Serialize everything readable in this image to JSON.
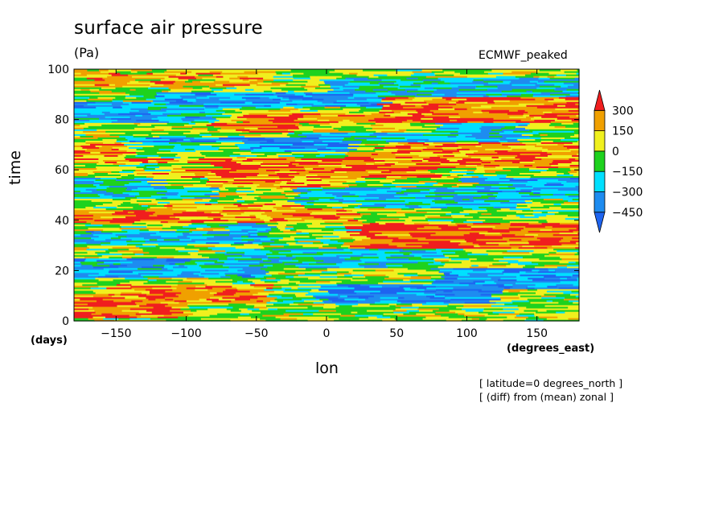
{
  "chart_data": {
    "type": "heatmap",
    "title": "surface air pressure",
    "units": "(Pa)",
    "model": "ECMWF_peaked",
    "xlabel": "lon",
    "ylabel": "time",
    "x_units": "(degrees_east)",
    "y_units": "(days)",
    "xlim": [
      -180,
      180
    ],
    "ylim": [
      0,
      100
    ],
    "x_ticks": [
      -150,
      -100,
      -50,
      0,
      50,
      100,
      150
    ],
    "y_ticks": [
      0,
      20,
      40,
      60,
      80,
      100
    ],
    "x_tick_labels": [
      "−150",
      "−100",
      "−50",
      "0",
      "50",
      "100",
      "150"
    ],
    "y_tick_labels": [
      "0",
      "20",
      "40",
      "60",
      "80",
      "100"
    ],
    "colorbar": {
      "levels": [
        -450,
        -300,
        -150,
        0,
        150,
        300
      ],
      "level_labels": [
        "−450",
        "−300",
        "−150",
        "0",
        "150",
        "300"
      ],
      "colors": [
        "#1e64f0",
        "#1e8cf0",
        "#00e0ff",
        "#1ed21e",
        "#f0f01e",
        "#f0a000",
        "#f01e1e"
      ],
      "extend": "both"
    },
    "bands": [
      {
        "lon": [
          -180,
          -120
        ],
        "time": [
          2,
          10
        ],
        "value": 300
      },
      {
        "lon": [
          -130,
          -20
        ],
        "time": [
          8,
          14
        ],
        "value": 250
      },
      {
        "lon": [
          -20,
          100
        ],
        "time": [
          8,
          14
        ],
        "value": -400
      },
      {
        "lon": [
          100,
          180
        ],
        "time": [
          14,
          20
        ],
        "value": -350
      },
      {
        "lon": [
          -180,
          -60
        ],
        "time": [
          18,
          24
        ],
        "value": -300
      },
      {
        "lon": [
          -60,
          60
        ],
        "time": [
          22,
          28
        ],
        "value": -250
      },
      {
        "lon": [
          40,
          180
        ],
        "time": [
          30,
          38
        ],
        "value": 300
      },
      {
        "lon": [
          -180,
          -60
        ],
        "time": [
          32,
          38
        ],
        "value": -300
      },
      {
        "lon": [
          -180,
          -90
        ],
        "time": [
          37,
          43
        ],
        "value": 300
      },
      {
        "lon": [
          -100,
          0
        ],
        "time": [
          40,
          46
        ],
        "value": 200
      },
      {
        "lon": [
          0,
          120
        ],
        "time": [
          46,
          52
        ],
        "value": -250
      },
      {
        "lon": [
          120,
          180
        ],
        "time": [
          50,
          56
        ],
        "value": -300
      },
      {
        "lon": [
          -180,
          -100
        ],
        "time": [
          50,
          56
        ],
        "value": -200
      },
      {
        "lon": [
          -100,
          0
        ],
        "time": [
          54,
          60
        ],
        "value": 200
      },
      {
        "lon": [
          -60,
          60
        ],
        "time": [
          58,
          66
        ],
        "value": 300
      },
      {
        "lon": [
          60,
          180
        ],
        "time": [
          62,
          70
        ],
        "value": 250
      },
      {
        "lon": [
          -180,
          -80
        ],
        "time": [
          64,
          70
        ],
        "value": 200
      },
      {
        "lon": [
          -120,
          0
        ],
        "time": [
          66,
          72
        ],
        "value": -350
      },
      {
        "lon": [
          0,
          120
        ],
        "time": [
          72,
          78
        ],
        "value": -250
      },
      {
        "lon": [
          -60,
          60
        ],
        "time": [
          76,
          84
        ],
        "value": 300
      },
      {
        "lon": [
          60,
          180
        ],
        "time": [
          80,
          88
        ],
        "value": 250
      },
      {
        "lon": [
          -180,
          -80
        ],
        "time": [
          80,
          86
        ],
        "value": -300
      },
      {
        "lon": [
          -100,
          20
        ],
        "time": [
          84,
          90
        ],
        "value": -350
      },
      {
        "lon": [
          20,
          180
        ],
        "time": [
          90,
          96
        ],
        "value": -250
      },
      {
        "lon": [
          -180,
          -60
        ],
        "time": [
          94,
          100
        ],
        "value": 150
      }
    ]
  },
  "annotations": {
    "line1": "[ latitude=0 degrees_north ]",
    "line2": "[ (diff) from (mean) zonal ]"
  }
}
